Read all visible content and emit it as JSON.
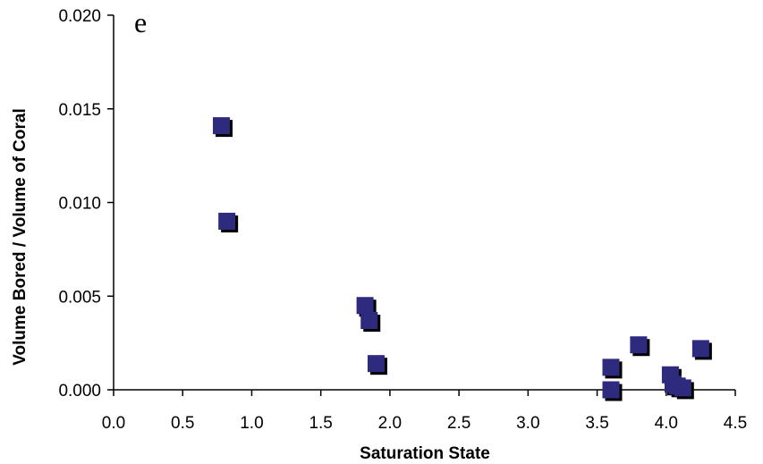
{
  "chart_data": {
    "type": "scatter",
    "title": "",
    "panel_label": "e",
    "xlabel": "Saturation State",
    "ylabel": "Volume Bored / Volume of Coral",
    "xlim": [
      0.0,
      4.5
    ],
    "ylim": [
      0.0,
      0.02
    ],
    "x_ticks": [
      "0.0",
      "0.5",
      "1.0",
      "1.5",
      "2.0",
      "2.5",
      "3.0",
      "3.5",
      "4.0",
      "4.5"
    ],
    "y_ticks": [
      "0.000",
      "0.005",
      "0.010",
      "0.015",
      "0.020"
    ],
    "grid": false,
    "legend": "none",
    "marker": "square",
    "marker_color": "#2e2a7d",
    "marker_shadow_color": "#000000",
    "series": [
      {
        "x": [
          0.78,
          0.82,
          1.82,
          1.85,
          1.9,
          3.6,
          3.6,
          3.8,
          4.03,
          4.05,
          4.08,
          4.12,
          4.25
        ],
        "y": [
          0.0141,
          0.009,
          0.0045,
          0.0037,
          0.0014,
          0.0012,
          0.0,
          0.0024,
          0.0008,
          0.0003,
          0.0002,
          0.0001,
          0.0022
        ]
      }
    ]
  }
}
